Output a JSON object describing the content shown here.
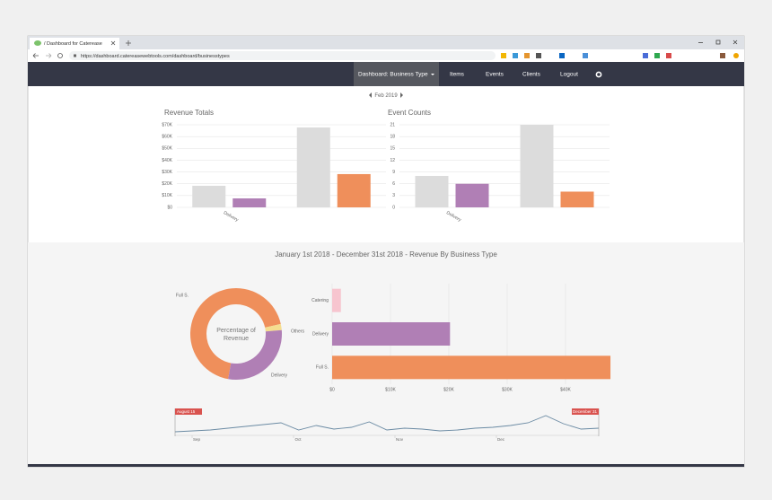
{
  "browser": {
    "tab_title": "/ Dashboard for Caterease",
    "url": "https://dashboard.catereasewebtools.com/dashboard/businesstypes"
  },
  "nav": {
    "items": [
      "Dashboard: Business Type",
      "Items",
      "Events",
      "Clients",
      "Logout"
    ]
  },
  "period": "Feb 2019",
  "section_title": "January 1st 2018 - December 31st 2018 - Revenue By Business Type",
  "chart_data": [
    {
      "type": "bar",
      "title": "Revenue Totals",
      "categories": [
        "Delivery",
        null
      ],
      "series": [
        {
          "color": "#dcdcdc",
          "values": [
            18300,
            67700
          ]
        },
        {
          "colors": [
            "#b07fb5",
            "#ef8f5b"
          ],
          "values": [
            7600,
            28200
          ]
        }
      ],
      "ylim": [
        0,
        70000
      ],
      "yticks": [
        {
          "value": 0,
          "label": "$0"
        },
        {
          "value": 10000,
          "label": "$10K"
        },
        {
          "value": 20000,
          "label": "$20K"
        },
        {
          "value": 30000,
          "label": "$30K"
        },
        {
          "value": 40000,
          "label": "$40K"
        },
        {
          "value": 50000,
          "label": "$50K"
        },
        {
          "value": 60000,
          "label": "$60K"
        },
        {
          "value": 70000,
          "label": "$70K"
        }
      ],
      "grid": true
    },
    {
      "type": "bar",
      "title": "Event Counts",
      "categories": [
        "Delivery",
        null
      ],
      "series": [
        {
          "color": "#dcdcdc",
          "values": [
            8,
            21
          ]
        },
        {
          "colors": [
            "#b07fb5",
            "#ef8f5b"
          ],
          "values": [
            6,
            4
          ]
        }
      ],
      "ylim": [
        0,
        21
      ],
      "yticks": [
        0,
        3,
        6,
        9,
        12,
        15,
        18,
        21
      ],
      "grid": true
    },
    {
      "type": "pie",
      "title": "Percentage of Revenue",
      "categories": [
        "Full S.",
        "Others",
        "Delivery"
      ],
      "values": [
        47700,
        1500,
        20200
      ],
      "colors": [
        "#ef8f5b",
        "#f5dd8f",
        "#b07fb5"
      ],
      "donut": true
    },
    {
      "type": "hbar",
      "categories": [
        "Catering",
        "Delivery",
        "Full S."
      ],
      "values": [
        1500,
        20200,
        47700
      ],
      "colors": [
        "#f7c5cf",
        "#b07fb5",
        "#ef8f5b"
      ],
      "xlim": [
        0,
        48000
      ],
      "xticks": [
        {
          "value": 0,
          "label": "$0"
        },
        {
          "value": 10000,
          "label": "$10K"
        },
        {
          "value": 20000,
          "label": "$20K"
        },
        {
          "value": 30000,
          "label": "$30K"
        },
        {
          "value": 40000,
          "label": "$40K"
        }
      ],
      "grid": true
    },
    {
      "type": "line",
      "values": [
        7,
        8,
        9,
        11,
        13,
        15,
        17,
        9,
        14,
        10,
        12,
        18,
        9,
        11,
        10,
        8,
        9,
        11,
        12,
        14,
        17,
        25,
        16,
        10,
        11
      ],
      "color": "#6a8aa3",
      "ylim": [
        0,
        30
      ],
      "range_labels": [
        "August 15",
        "December 31"
      ],
      "xtick_labels": [
        "Sep",
        "Oct",
        "Nov",
        "Dec"
      ]
    }
  ]
}
